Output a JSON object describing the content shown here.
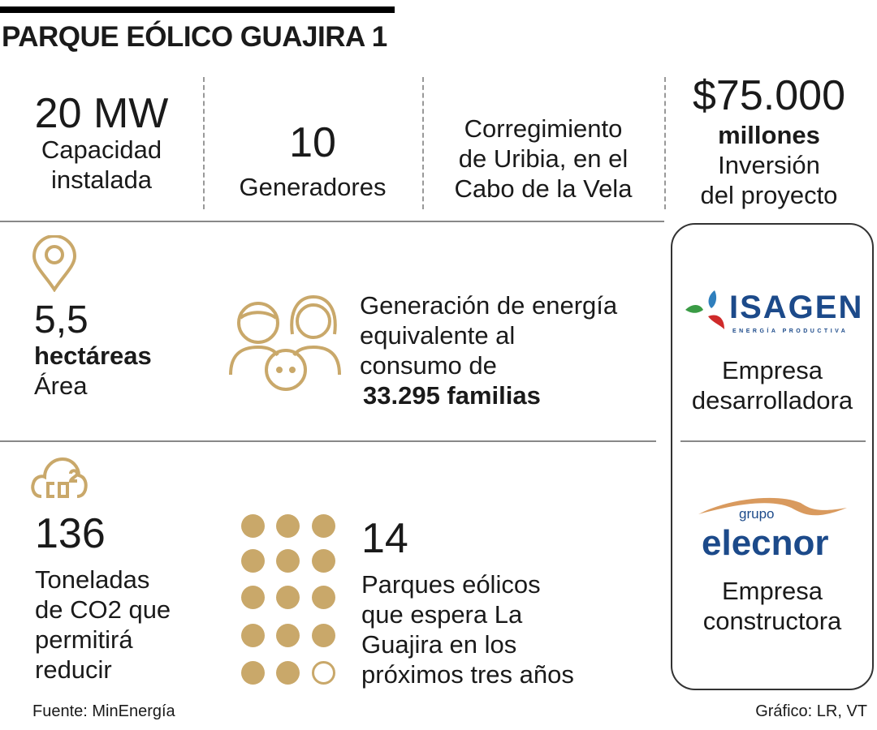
{
  "title": "PARQUE EÓLICO GUAJIRA 1",
  "accent_color": "#c9a86a",
  "stats": {
    "capacity": {
      "value": "20 MW",
      "label_lines": [
        "Capacidad",
        "instalada"
      ]
    },
    "generators": {
      "value": "10",
      "label": "Generadores"
    },
    "location": {
      "lines": [
        "Corregimiento",
        "de Uribia, en el",
        "Cabo de la Vela"
      ]
    },
    "investment": {
      "value": "$75.000",
      "unit": "millones",
      "label_lines": [
        "Inversión",
        "del proyecto"
      ]
    },
    "area": {
      "icon": "location-pin-icon",
      "value": "5,5",
      "unit": "hectáreas",
      "label": "Área"
    },
    "families": {
      "icon": "family-icon",
      "lines": [
        "Generación de energía",
        "equivalente al",
        "consumo de"
      ],
      "highlight": "33.295 familias"
    },
    "co2": {
      "icon": "co2-cloud-icon",
      "value": "136",
      "label_lines": [
        "Toneladas",
        "de CO2 que",
        "permitirá",
        "reducir"
      ]
    },
    "parks": {
      "value": "14",
      "filled": 14,
      "total": 15,
      "label_lines": [
        "Parques eólicos",
        "que espera La",
        "Guajira en los",
        "próximos tres años"
      ]
    }
  },
  "companies": [
    {
      "logo": "ISAGEN",
      "logo_tagline": "ENERGÍA PRODUCTIVA",
      "role_lines": [
        "Empresa",
        "desarrolladora"
      ]
    },
    {
      "logo_small": "grupo",
      "logo": "elecnor",
      "role_lines": [
        "Empresa",
        "constructora"
      ]
    }
  ],
  "footer": {
    "source": "Fuente: MinEnergía",
    "credit": "Gráfico: LR, VT"
  }
}
